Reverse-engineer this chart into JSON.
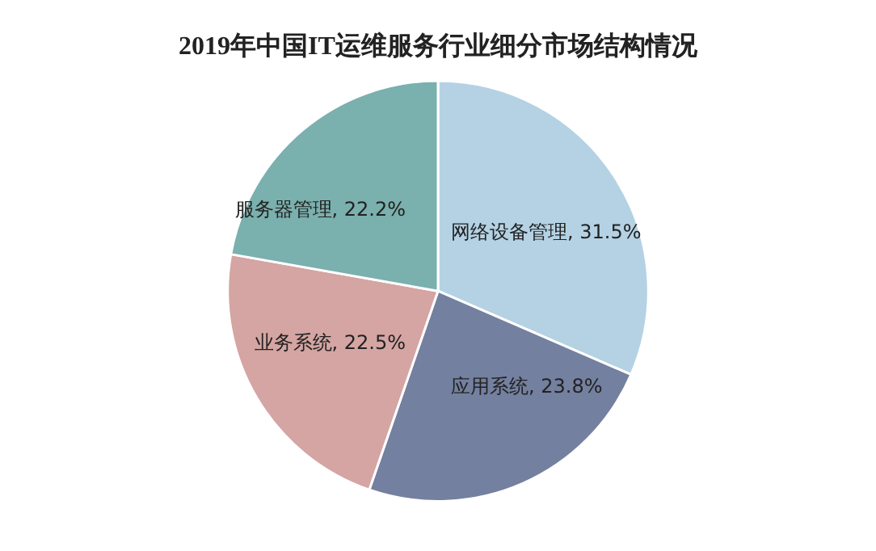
{
  "chart_data": {
    "type": "pie",
    "title": "2019年中国IT运维服务行业细分市场结构情况",
    "categories": [
      "网络设备管理",
      "应用系统",
      "业务系统",
      "服务器管理"
    ],
    "values": [
      31.5,
      23.8,
      22.5,
      22.2
    ],
    "value_labels": [
      "31.5%",
      "23.8%",
      "22.5%",
      "22.2%"
    ],
    "colors": [
      "#b4d2e4",
      "#74809f",
      "#d4a5a3",
      "#7ab0ae"
    ],
    "legend": false
  }
}
